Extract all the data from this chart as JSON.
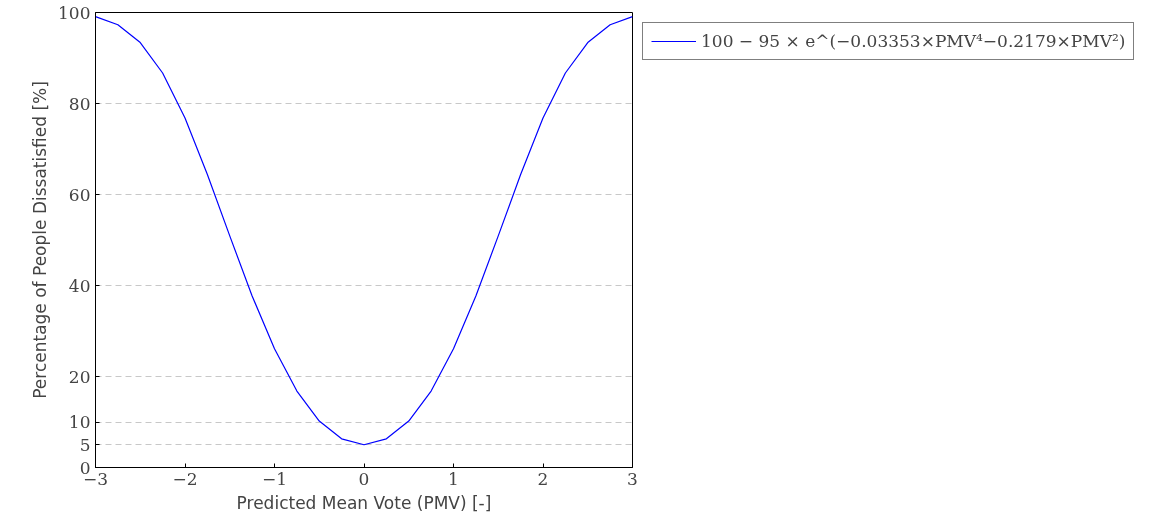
{
  "chart_data": {
    "type": "line",
    "xlabel": "Predicted Mean Vote (PMV) [-]",
    "ylabel": "Percentage of People Dissatisfied [%]",
    "x": [
      -3,
      -2.75,
      -2.5,
      -2.25,
      -2,
      -1.75,
      -1.5,
      -1.25,
      -1,
      -0.75,
      -0.5,
      -0.25,
      0,
      0.25,
      0.5,
      0.75,
      1,
      1.25,
      1.5,
      1.75,
      2,
      2.25,
      2.5,
      2.75,
      3
    ],
    "series": [
      {
        "name": "100 − 95 × e^(−0.03353×PMV⁴−0.2179×PMV²)",
        "color": "#0000ff",
        "values": [
          99.1,
          97.3,
          93.4,
          86.7,
          76.8,
          64.4,
          50.9,
          37.7,
          26.1,
          16.8,
          10.2,
          6.3,
          5,
          6.3,
          10.2,
          16.8,
          26.1,
          37.7,
          50.9,
          64.4,
          76.8,
          86.7,
          93.4,
          97.3,
          99.1
        ]
      }
    ],
    "xlim": [
      -3,
      3
    ],
    "ylim": [
      0,
      100
    ],
    "xticks": [
      -3,
      -2,
      -1,
      0,
      1,
      2,
      3
    ],
    "yticks": [
      0,
      5,
      10,
      20,
      40,
      60,
      80,
      100
    ],
    "grid": "y",
    "legend": "top right",
    "marker": "none",
    "line_style": "solid"
  }
}
